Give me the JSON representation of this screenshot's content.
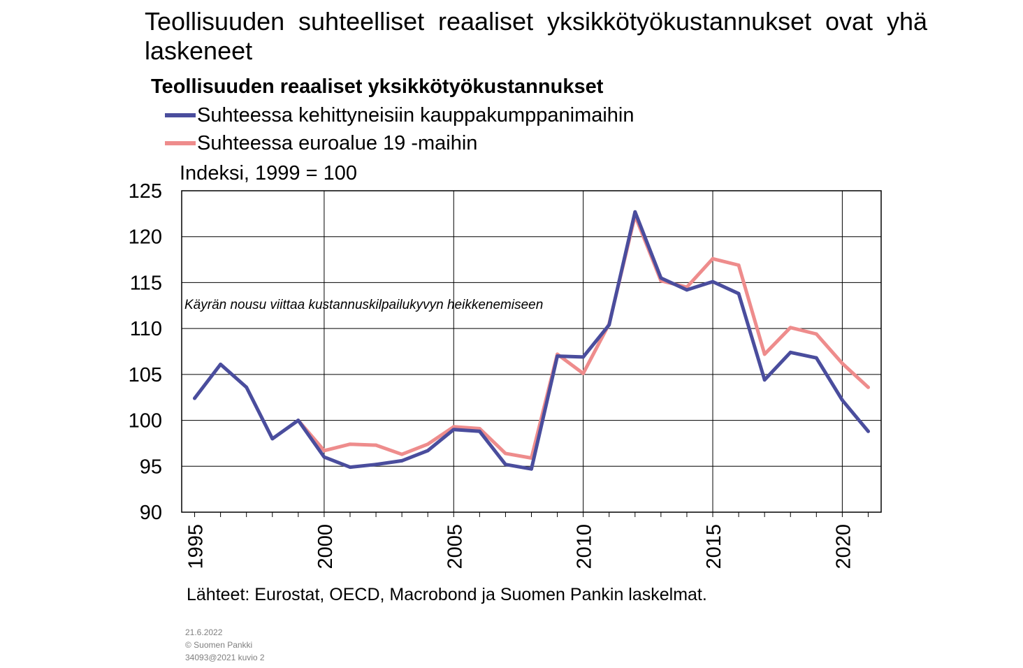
{
  "title": "Teollisuuden suhteelliset reaaliset yksikkötyökustannukset ovat yhä laskeneet",
  "chart_data": {
    "type": "line",
    "title": "Teollisuuden reaaliset yksikkötyökustannukset",
    "ylabel": "Indeksi, 1999 = 100",
    "annotation": "Käyrän nousu viittaa kustannuskilpailukyvyn heikkenemiseen",
    "ylim": [
      90,
      125
    ],
    "yticks": [
      90,
      95,
      100,
      105,
      110,
      115,
      120,
      125
    ],
    "xlim": [
      1994.5,
      2021.5
    ],
    "xticks": [
      1995,
      2000,
      2005,
      2010,
      2015,
      2020
    ],
    "xticklabels": [
      "1995",
      "2000",
      "2005",
      "2010",
      "2015",
      "2020"
    ],
    "grid": true,
    "legend_position": "top-left",
    "series": [
      {
        "name": "Suhteessa kehittyneisiin kauppakumppanimaihin",
        "color": "#4a4d9d",
        "x": [
          1995,
          1996,
          1997,
          1998,
          1999,
          2000,
          2001,
          2002,
          2003,
          2004,
          2005,
          2006,
          2007,
          2008,
          2009,
          2010,
          2011,
          2012,
          2013,
          2014,
          2015,
          2016,
          2017,
          2018,
          2019,
          2020,
          2021
        ],
        "values": [
          102.4,
          106.1,
          103.6,
          98.0,
          100.0,
          96.0,
          94.9,
          95.2,
          95.6,
          96.7,
          99.0,
          98.8,
          95.2,
          94.7,
          107.0,
          106.9,
          110.4,
          122.7,
          115.5,
          114.2,
          115.1,
          113.8,
          104.4,
          107.4,
          106.8,
          102.2,
          98.8
        ]
      },
      {
        "name": "Suhteessa euroalue 19 -maihin",
        "color": "#ee8c8c",
        "x": [
          1999,
          2000,
          2001,
          2002,
          2003,
          2004,
          2005,
          2006,
          2007,
          2008,
          2009,
          2010,
          2011,
          2012,
          2013,
          2014,
          2015,
          2016,
          2017,
          2018,
          2019,
          2020,
          2021
        ],
        "values": [
          100.0,
          96.7,
          97.4,
          97.3,
          96.3,
          97.4,
          99.3,
          99.1,
          96.4,
          95.9,
          107.2,
          105.1,
          110.5,
          122.3,
          115.2,
          114.5,
          117.6,
          116.9,
          107.2,
          110.1,
          109.4,
          106.2,
          103.6
        ]
      }
    ]
  },
  "source": "Lähteet: Eurostat, OECD, Macrobond ja Suomen Pankin laskelmat.",
  "footer": {
    "date": "21.6.2022",
    "copyright": "© Suomen Pankki",
    "code": "34093@2021 kuvio 2"
  }
}
